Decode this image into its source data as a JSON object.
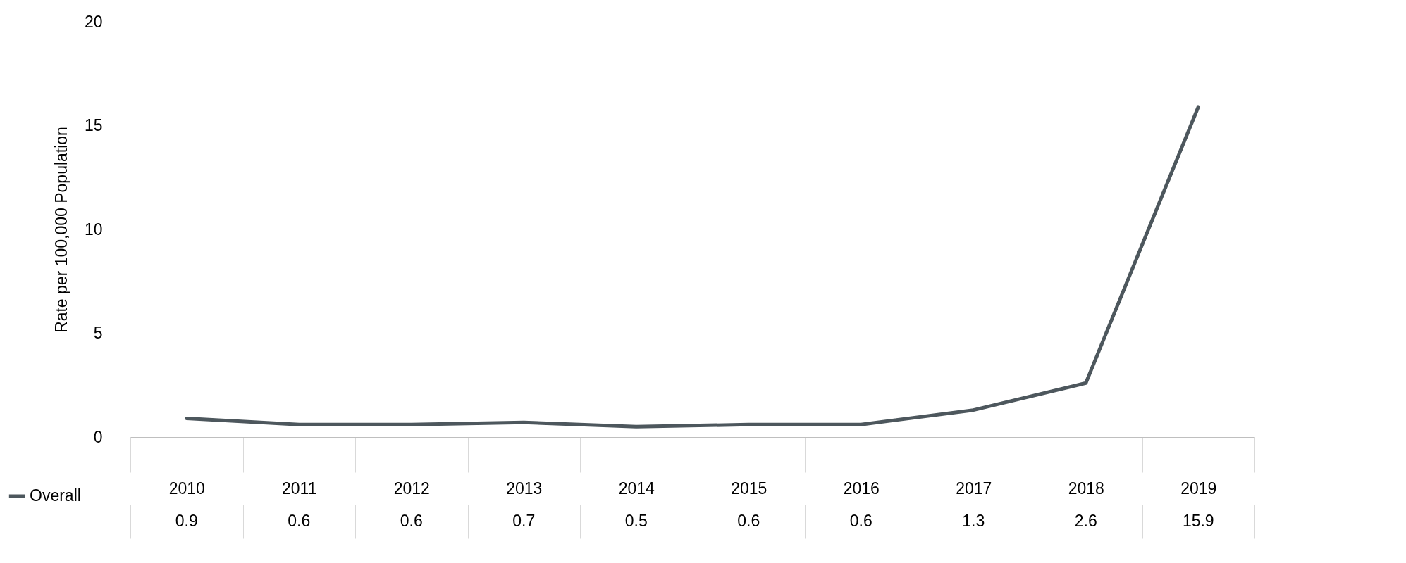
{
  "chart_data": {
    "type": "line",
    "ylabel": "Rate per 100,000 Population",
    "categories": [
      "2010",
      "2011",
      "2012",
      "2013",
      "2014",
      "2015",
      "2016",
      "2017",
      "2018",
      "2019"
    ],
    "series": [
      {
        "name": "Overall",
        "color": "#4d575d",
        "values": [
          0.9,
          0.6,
          0.6,
          0.7,
          0.5,
          0.6,
          0.6,
          1.3,
          2.6,
          15.9
        ]
      }
    ],
    "ylim": [
      0,
      20
    ],
    "yticks": [
      0,
      5,
      10,
      15,
      20
    ],
    "grid": false,
    "data_labels": true,
    "legend": "bottom left",
    "marker": "none",
    "line_style": "solid"
  }
}
